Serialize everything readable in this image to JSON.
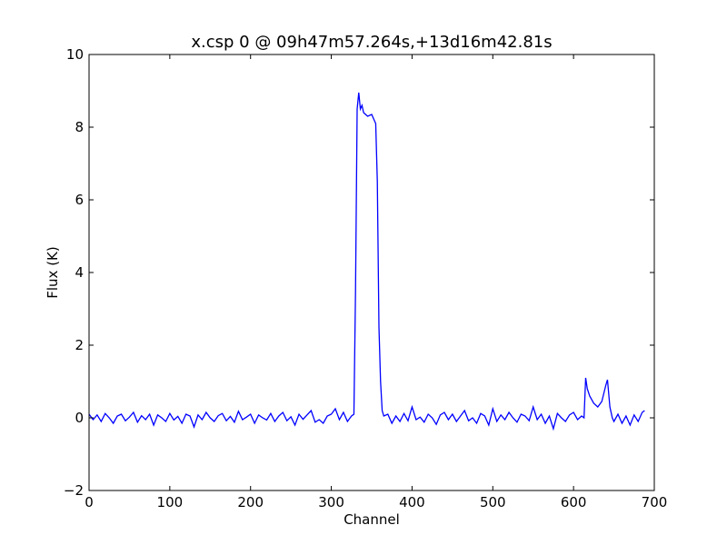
{
  "chart_data": {
    "type": "line",
    "title": "x.csp 0 @ 09h47m57.264s,+13d16m42.81s",
    "x_label": "Channel",
    "y_label": "Flux (K)",
    "xlim": [
      0,
      700
    ],
    "xticks": [
      0,
      100,
      200,
      300,
      400,
      500,
      600,
      700
    ],
    "ylim": [
      -2,
      10
    ],
    "yticks": [
      {
        "value": -2,
        "label": "−2"
      },
      0,
      2,
      4,
      6,
      8,
      10
    ],
    "x": [
      0,
      5,
      10,
      15,
      20,
      25,
      30,
      35,
      40,
      45,
      50,
      55,
      60,
      65,
      70,
      75,
      80,
      85,
      90,
      95,
      100,
      105,
      110,
      115,
      120,
      125,
      130,
      135,
      140,
      145,
      150,
      155,
      160,
      165,
      170,
      175,
      180,
      185,
      190,
      195,
      200,
      205,
      210,
      215,
      220,
      225,
      230,
      235,
      240,
      245,
      250,
      255,
      260,
      265,
      270,
      275,
      280,
      285,
      290,
      295,
      300,
      305,
      310,
      315,
      320,
      325,
      328,
      330,
      332,
      334,
      336,
      338,
      340,
      345,
      350,
      355,
      357,
      359,
      361,
      363,
      365,
      370,
      375,
      380,
      385,
      390,
      395,
      400,
      405,
      410,
      415,
      420,
      425,
      430,
      435,
      440,
      445,
      450,
      455,
      460,
      465,
      470,
      475,
      480,
      485,
      490,
      495,
      500,
      505,
      510,
      515,
      520,
      525,
      530,
      535,
      540,
      545,
      550,
      555,
      560,
      565,
      570,
      575,
      580,
      585,
      590,
      595,
      600,
      605,
      610,
      613,
      615,
      617,
      620,
      625,
      630,
      635,
      640,
      642,
      645,
      648,
      650,
      655,
      660,
      665,
      670,
      675,
      680,
      685,
      688
    ],
    "series": [
      {
        "name": "x.csp 0",
        "color": "#0000ff",
        "values": [
          0.1,
          -0.05,
          0.08,
          -0.1,
          0.12,
          0.0,
          -0.15,
          0.05,
          0.1,
          -0.08,
          0.02,
          0.15,
          -0.12,
          0.06,
          -0.05,
          0.1,
          -0.2,
          0.08,
          0.0,
          -0.1,
          0.12,
          -0.06,
          0.04,
          -0.15,
          0.1,
          0.05,
          -0.25,
          0.08,
          -0.05,
          0.15,
          0.0,
          -0.1,
          0.06,
          0.12,
          -0.08,
          0.04,
          -0.12,
          0.18,
          -0.05,
          0.02,
          0.1,
          -0.15,
          0.08,
          0.0,
          -0.06,
          0.12,
          -0.1,
          0.05,
          0.15,
          -0.08,
          0.03,
          -0.2,
          0.1,
          -0.04,
          0.08,
          0.2,
          -0.12,
          -0.05,
          -0.15,
          0.05,
          0.1,
          0.25,
          -0.05,
          0.15,
          -0.1,
          0.05,
          0.1,
          3.5,
          8.5,
          8.95,
          8.5,
          8.6,
          8.4,
          8.3,
          8.35,
          8.1,
          6.5,
          2.5,
          1.0,
          0.2,
          0.05,
          0.1,
          -0.15,
          0.05,
          -0.1,
          0.12,
          -0.08,
          0.3,
          -0.05,
          0.02,
          -0.12,
          0.1,
          0.0,
          -0.18,
          0.08,
          0.15,
          -0.05,
          0.1,
          -0.1,
          0.05,
          0.2,
          -0.08,
          0.0,
          -0.15,
          0.12,
          0.05,
          -0.2,
          0.25,
          -0.1,
          0.08,
          -0.05,
          0.15,
          0.0,
          -0.12,
          0.1,
          0.05,
          -0.08,
          0.3,
          -0.05,
          0.1,
          -0.15,
          0.05,
          -0.3,
          0.12,
          0.0,
          -0.1,
          0.08,
          0.15,
          -0.05,
          0.05,
          0.0,
          1.1,
          0.8,
          0.6,
          0.4,
          0.3,
          0.45,
          0.9,
          1.05,
          0.3,
          0.0,
          -0.1,
          0.1,
          -0.15,
          0.05,
          -0.2,
          0.08,
          -0.1,
          0.15,
          0.2
        ]
      }
    ]
  }
}
